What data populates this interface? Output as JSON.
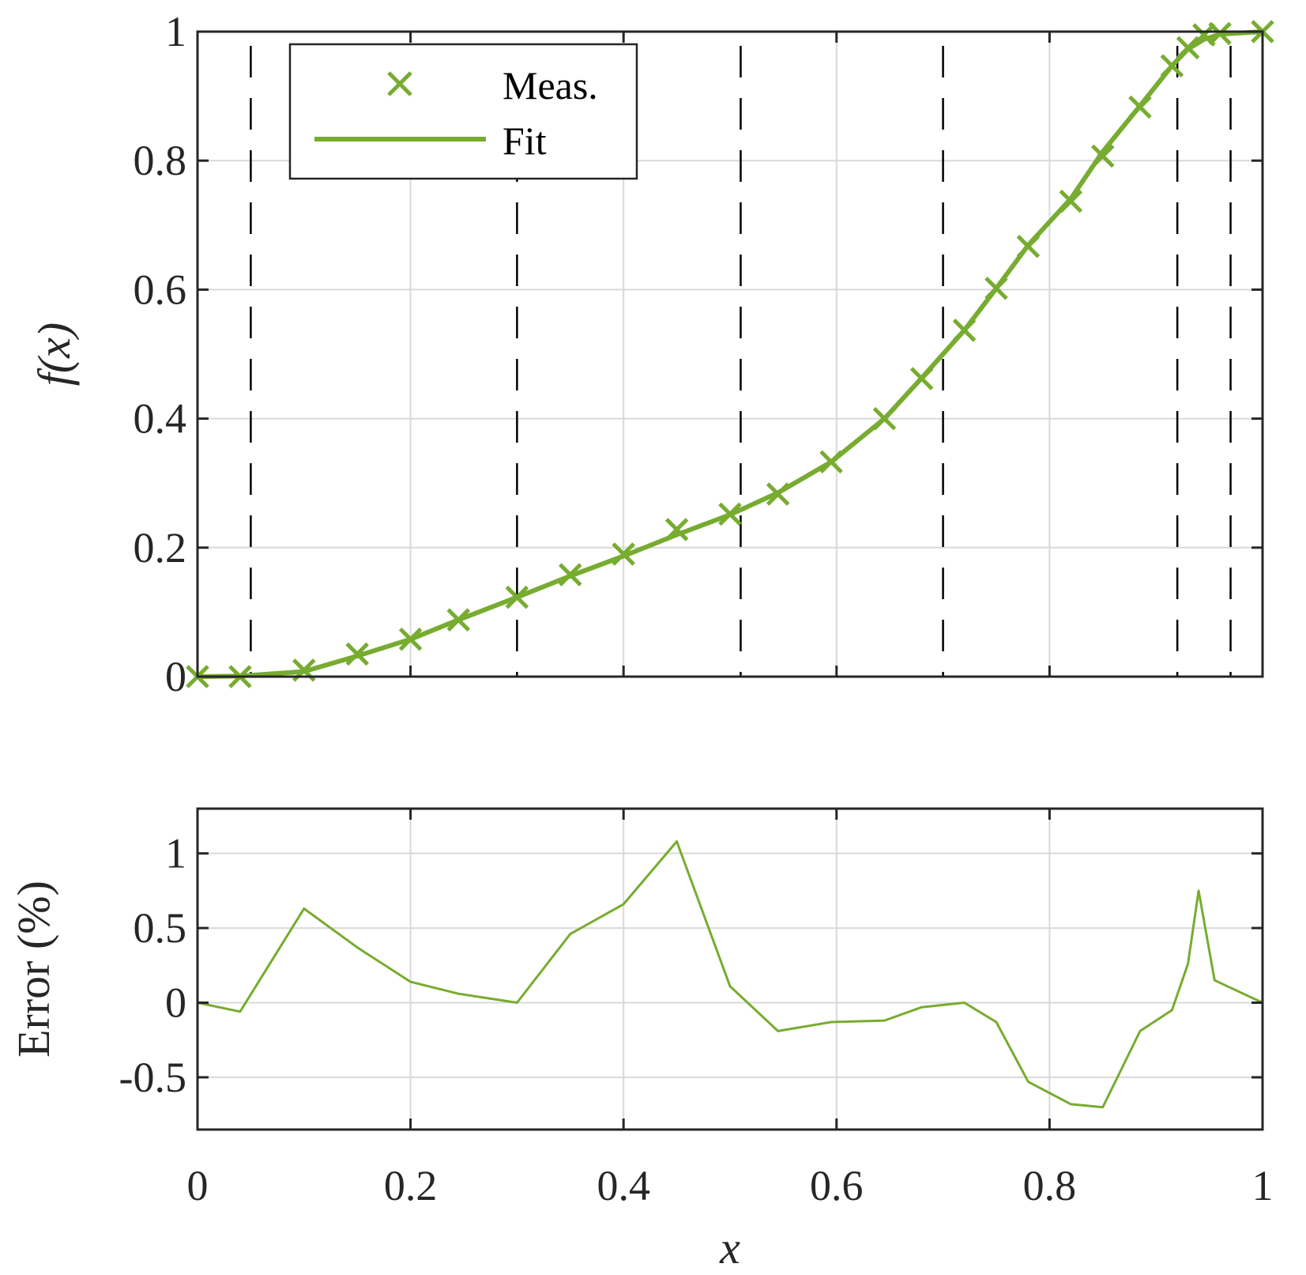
{
  "colors": {
    "series": "#77AC30",
    "grid": "#d9d9d9",
    "axis": "#262626",
    "knot": "#000000"
  },
  "chart_data": [
    {
      "type": "line",
      "ylabel": "f(x)",
      "xlim": [
        0,
        1
      ],
      "ylim": [
        0,
        1
      ],
      "xticks": [
        "0.2",
        "0.4",
        "0.6",
        "0.8"
      ],
      "yticks": [
        "0",
        "0.2",
        "0.4",
        "0.6",
        "0.8",
        "1"
      ],
      "grid": true,
      "legend": {
        "placement": "top-left",
        "entries": [
          "Meas.",
          "Fit"
        ]
      },
      "knots": [
        0.05,
        0.3,
        0.51,
        0.7,
        0.92,
        0.97
      ],
      "series": [
        {
          "name": "Meas.",
          "marker": "x",
          "x": [
            0,
            0.04,
            0.1,
            0.15,
            0.2,
            0.245,
            0.3,
            0.35,
            0.4,
            0.45,
            0.5,
            0.545,
            0.595,
            0.645,
            0.68,
            0.72,
            0.75,
            0.78,
            0.82,
            0.85,
            0.885,
            0.915,
            0.93,
            0.945,
            0.96,
            1.0
          ],
          "y": [
            0,
            0,
            0.01,
            0.035,
            0.058,
            0.088,
            0.123,
            0.158,
            0.19,
            0.228,
            0.252,
            0.283,
            0.333,
            0.4,
            0.462,
            0.537,
            0.602,
            0.667,
            0.737,
            0.807,
            0.883,
            0.947,
            0.975,
            0.995,
            0.997,
            1.0
          ]
        },
        {
          "name": "Fit",
          "x": [
            0,
            0.04,
            0.1,
            0.15,
            0.2,
            0.245,
            0.3,
            0.35,
            0.4,
            0.45,
            0.5,
            0.545,
            0.595,
            0.645,
            0.68,
            0.72,
            0.75,
            0.78,
            0.82,
            0.85,
            0.885,
            0.915,
            0.93,
            0.945,
            0.96,
            1.0
          ],
          "y": [
            0,
            0.001,
            0.008,
            0.032,
            0.058,
            0.088,
            0.123,
            0.156,
            0.187,
            0.22,
            0.251,
            0.285,
            0.333,
            0.4,
            0.463,
            0.537,
            0.602,
            0.669,
            0.741,
            0.814,
            0.885,
            0.947,
            0.973,
            0.988,
            0.996,
            1.0
          ]
        }
      ]
    },
    {
      "type": "line",
      "xlabel": "x",
      "ylabel": "Error (%)",
      "xlim": [
        0,
        1
      ],
      "ylim": [
        -0.85,
        1.3
      ],
      "xticks": [
        "0",
        "0.2",
        "0.4",
        "0.6",
        "0.8",
        "1"
      ],
      "yticks": [
        "-0.5",
        "0",
        "0.5",
        "1"
      ],
      "grid": true,
      "series": [
        {
          "x": [
            0,
            0.04,
            0.1,
            0.15,
            0.2,
            0.245,
            0.3,
            0.35,
            0.4,
            0.45,
            0.5,
            0.545,
            0.595,
            0.645,
            0.68,
            0.72,
            0.75,
            0.78,
            0.82,
            0.85,
            0.885,
            0.915,
            0.93,
            0.94,
            0.955,
            1.0
          ],
          "y": [
            0,
            -0.06,
            0.63,
            0.37,
            0.14,
            0.06,
            0,
            0.46,
            0.66,
            1.08,
            0.11,
            -0.19,
            -0.13,
            -0.12,
            -0.03,
            0,
            -0.13,
            -0.53,
            -0.68,
            -0.7,
            -0.19,
            -0.05,
            0.26,
            0.75,
            0.15,
            0
          ]
        }
      ]
    }
  ]
}
